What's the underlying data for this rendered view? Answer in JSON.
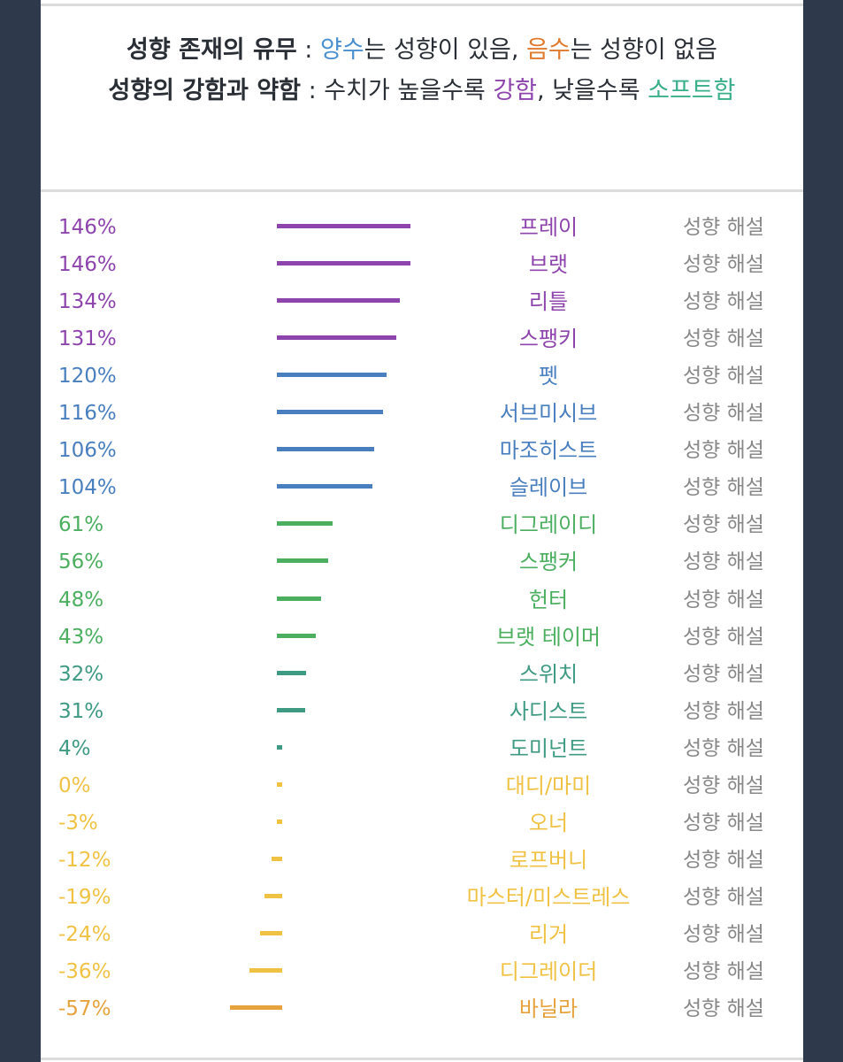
{
  "legend": {
    "line1": {
      "bold": "성향 존재의 유무",
      "sep": " : ",
      "pos_word": "양수",
      "pos_rest": "는 성향이 있음, ",
      "neg_word": "음수",
      "neg_rest": "는 성향이 없음"
    },
    "line2": {
      "bold": "성향의 강함과 약함",
      "sep": " : ",
      "mid": "수치가 높을수록 ",
      "strong_word": "강함",
      "mid2": ", 낮을수록 ",
      "soft_word": "소프트함"
    }
  },
  "chart_data": {
    "type": "bar",
    "orientation": "horizontal",
    "unit": "%",
    "description_label": "성향 해설",
    "categories": [
      "프레이",
      "브랫",
      "리틀",
      "스팽키",
      "펫",
      "서브미시브",
      "마조히스트",
      "슬레이브",
      "디그레이디",
      "스팽커",
      "헌터",
      "브랫 테이머",
      "스위치",
      "사디스트",
      "도미넌트",
      "대디/마미",
      "오너",
      "로프버니",
      "마스터/미스트레스",
      "리거",
      "디그레이더",
      "바닐라"
    ],
    "values": [
      146,
      146,
      134,
      131,
      120,
      116,
      106,
      104,
      61,
      56,
      48,
      43,
      32,
      31,
      4,
      0,
      -3,
      -12,
      -19,
      -24,
      -36,
      -57
    ],
    "labels": [
      "146%",
      "146%",
      "134%",
      "131%",
      "120%",
      "116%",
      "106%",
      "104%",
      "61%",
      "56%",
      "48%",
      "43%",
      "32%",
      "31%",
      "4%",
      "0%",
      "-3%",
      "-12%",
      "-19%",
      "-24%",
      "-36%",
      "-57%"
    ],
    "colors": [
      "#8e44ad",
      "#8e44ad",
      "#8e44ad",
      "#8e44ad",
      "#4a7fbf",
      "#4a7fbf",
      "#4a7fbf",
      "#4a7fbf",
      "#4caf60",
      "#4caf60",
      "#4caf60",
      "#4caf60",
      "#3f9a83",
      "#3f9a83",
      "#3f9a83",
      "#f0c244",
      "#f0c244",
      "#f0c244",
      "#f0c244",
      "#f0c244",
      "#f0c244",
      "#e6a23c"
    ]
  }
}
